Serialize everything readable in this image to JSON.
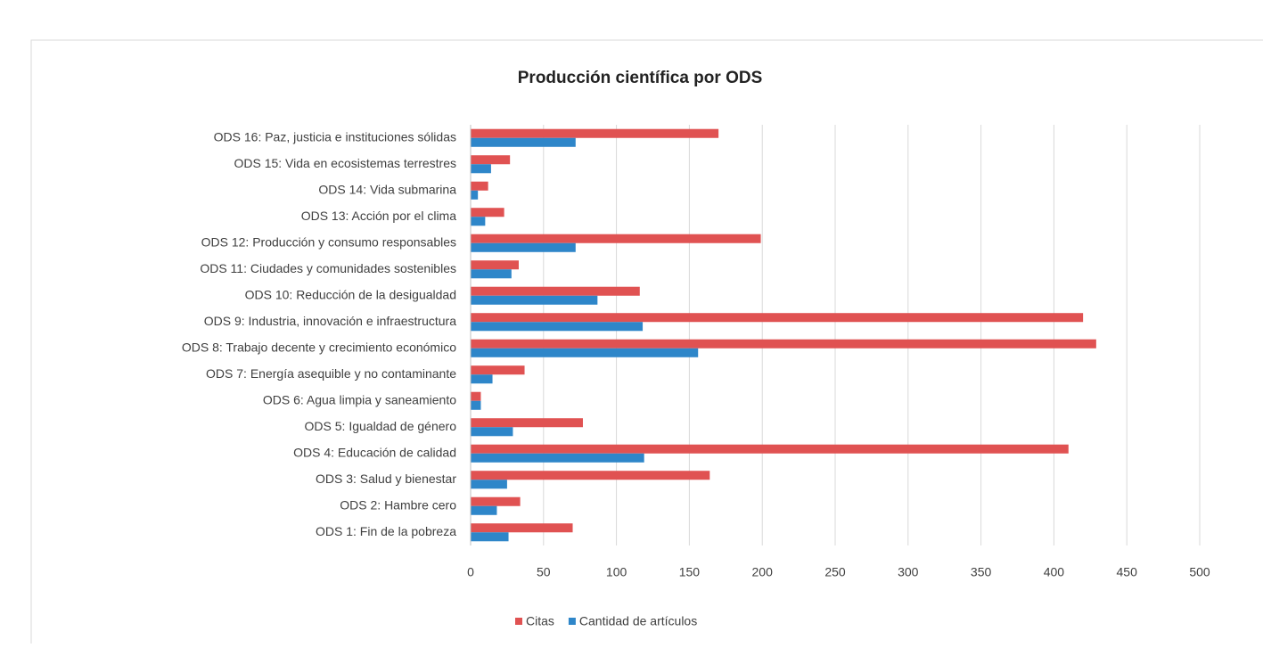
{
  "chart_data": {
    "type": "barh",
    "title": "Producción científica por ODS",
    "categories": [
      "ODS 1: Fin de la pobreza",
      "ODS 2: Hambre cero",
      "ODS 3: Salud y bienestar",
      "ODS 4: Educación de calidad",
      "ODS 5: Igualdad de género",
      "ODS 6: Agua limpia y saneamiento",
      "ODS 7: Energía asequible y no contaminante",
      "ODS 8: Trabajo decente y crecimiento económico",
      "ODS 9: Industria, innovación e infraestructura",
      "ODS 10: Reducción de la desigualdad",
      "ODS 11: Ciudades y comunidades sostenibles",
      "ODS 12: Producción y consumo responsables",
      "ODS 13: Acción por el clima",
      "ODS 14: Vida submarina",
      "ODS 15: Vida en ecosistemas terrestres",
      "ODS 16: Paz, justicia e instituciones sólidas"
    ],
    "series": [
      {
        "name": "Citas",
        "color": "#e05252",
        "values": [
          70,
          34,
          164,
          410,
          77,
          7,
          37,
          429,
          420,
          116,
          33,
          199,
          23,
          12,
          27,
          170
        ]
      },
      {
        "name": "Cantidad de artículos",
        "color": "#2e86c9",
        "values": [
          26,
          18,
          25,
          119,
          29,
          7,
          15,
          156,
          118,
          87,
          28,
          72,
          10,
          5,
          14,
          72
        ]
      }
    ],
    "xlim": [
      0,
      500
    ],
    "xticks": [
      0,
      50,
      100,
      150,
      200,
      250,
      300,
      350,
      400,
      450,
      500
    ],
    "grid": true,
    "legend": "bottom"
  }
}
